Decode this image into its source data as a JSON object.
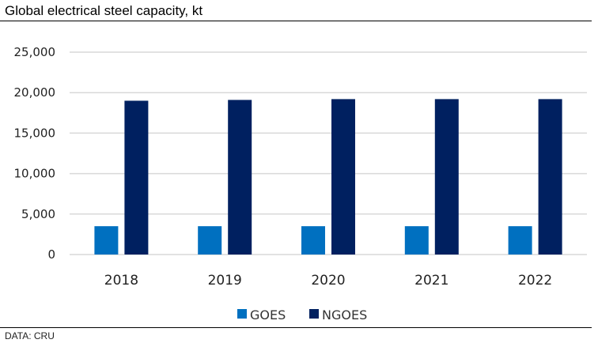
{
  "header": {
    "title": "Global electrical steel capacity, kt"
  },
  "footer": {
    "source": "DATA: CRU"
  },
  "chart_data": {
    "type": "bar",
    "title": "Global electrical steel capacity, kt",
    "xlabel": "",
    "ylabel": "",
    "categories": [
      "2018",
      "2019",
      "2020",
      "2021",
      "2022"
    ],
    "series": [
      {
        "name": "GOES",
        "color": "#0070C0",
        "values": [
          3500,
          3500,
          3500,
          3500,
          3500
        ]
      },
      {
        "name": "NGOES",
        "color": "#002060",
        "values": [
          19000,
          19100,
          19200,
          19200,
          19200
        ]
      }
    ],
    "ylim": [
      0,
      25000
    ],
    "yticks": [
      0,
      5000,
      10000,
      15000,
      20000,
      25000
    ],
    "ytick_labels": [
      "0",
      "5,000",
      "10,000",
      "15,000",
      "20,000",
      "25,000"
    ],
    "grid": true,
    "legend": "bottom-center"
  }
}
